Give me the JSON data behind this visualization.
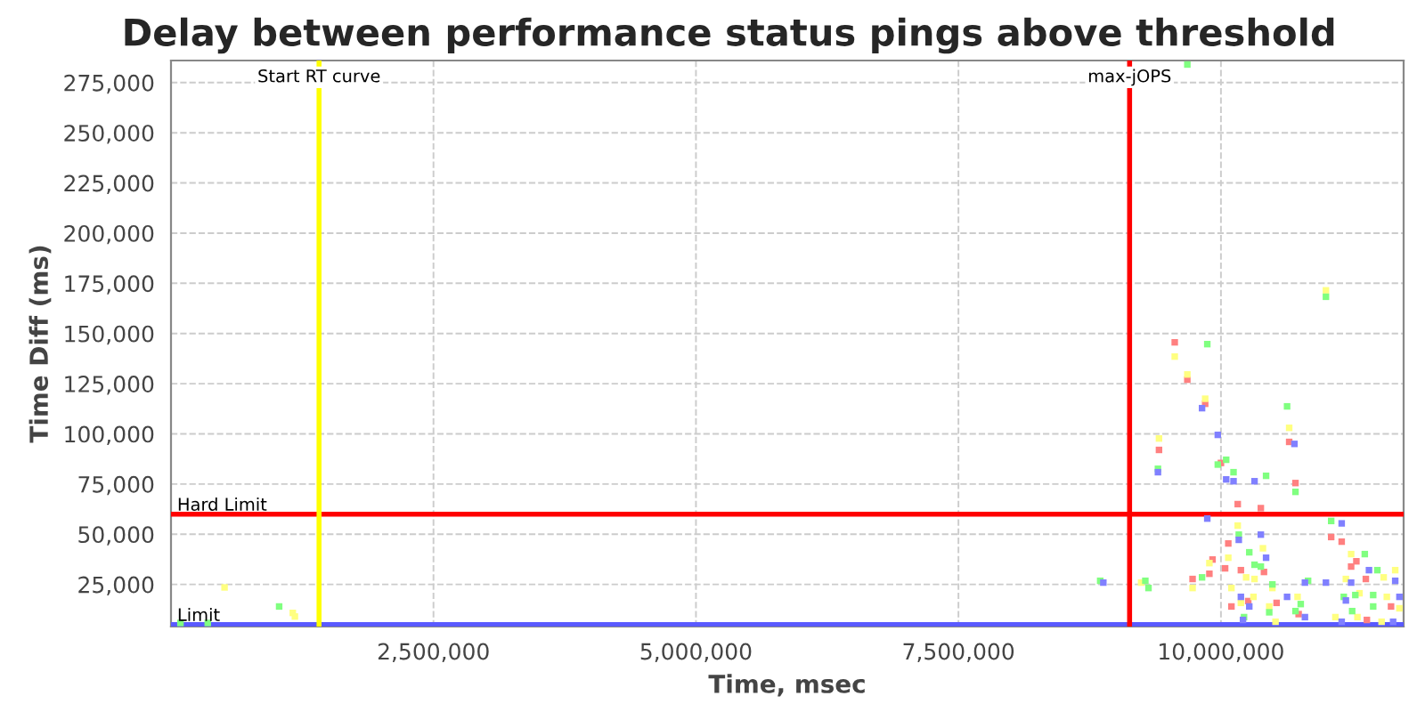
{
  "chart_data": {
    "type": "scatter",
    "title": "Delay between performance status pings above threshold",
    "xlabel": "Time, msec",
    "ylabel": "Time Diff (ms)",
    "xlim": [
      0,
      11740000
    ],
    "ylim": [
      4000,
      286000
    ],
    "xticks": [
      {
        "value": 2500000,
        "label": "2,500,000"
      },
      {
        "value": 5000000,
        "label": "5,000,000"
      },
      {
        "value": 7500000,
        "label": "7,500,000"
      },
      {
        "value": 10000000,
        "label": "10,000,000"
      }
    ],
    "yticks": [
      {
        "value": 25000,
        "label": "25,000"
      },
      {
        "value": 50000,
        "label": "50,000"
      },
      {
        "value": 75000,
        "label": "75,000"
      },
      {
        "value": 100000,
        "label": "100,000"
      },
      {
        "value": 125000,
        "label": "125,000"
      },
      {
        "value": 150000,
        "label": "150,000"
      },
      {
        "value": 175000,
        "label": "175,000"
      },
      {
        "value": 200000,
        "label": "200,000"
      },
      {
        "value": 225000,
        "label": "225,000"
      },
      {
        "value": 250000,
        "label": "250,000"
      },
      {
        "value": 275000,
        "label": "275,000"
      }
    ],
    "grid": true,
    "legend": false,
    "marker": "square",
    "ref_lines": [
      {
        "axis": "y",
        "value": 60000,
        "label": "Hard Limit",
        "color": "#ff0000"
      },
      {
        "axis": "y",
        "value": 5000,
        "label": "Limit",
        "color": "#5a5aff"
      },
      {
        "axis": "x",
        "value": 1410000,
        "label": "Start RT curve",
        "color": "#ffff00"
      },
      {
        "axis": "x",
        "value": 9130000,
        "label": "max-jOPS",
        "color": "#ff0000"
      }
    ],
    "series": [
      {
        "color": "#ff8080",
        "x": [
          9560000,
          9680000,
          9850000,
          9410000,
          10650000,
          10000000,
          10710000,
          10160000,
          10380000,
          11050000,
          11150000,
          10070000,
          9920000,
          11290000,
          11240000,
          10040000,
          10190000,
          10410000,
          9890000,
          9730000,
          11380000,
          10260000,
          10100000,
          10530000,
          11620000,
          11390000,
          10740000
        ],
        "values": [
          145600,
          127000,
          115000,
          92000,
          96000,
          85500,
          75500,
          65000,
          63000,
          48600,
          46300,
          45400,
          37400,
          36500,
          33900,
          33000,
          32100,
          31200,
          30300,
          27700,
          27700,
          16700,
          14000,
          15800,
          14000,
          7300,
          10200
        ]
      },
      {
        "color": "#ffff80",
        "x": [
          9560000,
          9680000,
          9850000,
          10650000,
          9410000,
          10160000,
          10400000,
          11240000,
          9890000,
          10070000,
          11660000,
          10240000,
          10320000,
          11550000,
          9240000,
          9730000,
          10100000,
          11190000,
          10490000,
          10730000,
          10310000,
          10190000,
          11320000,
          11580000,
          10460000,
          11300000,
          11090000,
          11530000,
          10520000,
          11700000,
          11000000,
          510000,
          1160000,
          1180000
        ],
        "values": [
          138500,
          129600,
          117500,
          103000,
          97700,
          54300,
          43000,
          40100,
          35600,
          38300,
          32100,
          28500,
          27700,
          28500,
          25900,
          23200,
          23200,
          27700,
          23200,
          18800,
          18800,
          15800,
          20600,
          18800,
          14000,
          8700,
          8700,
          6400,
          6400,
          13100,
          171500,
          23500,
          10800,
          9000
        ]
      },
      {
        "color": "#80ff80",
        "x": [
          9870000,
          10630000,
          9400000,
          10050000,
          9970000,
          10120000,
          10430000,
          10710000,
          11050000,
          10170000,
          11370000,
          10270000,
          10320000,
          10380000,
          11490000,
          9820000,
          8850000,
          9280000,
          9310000,
          10490000,
          10830000,
          10760000,
          11170000,
          11280000,
          11450000,
          10460000,
          10710000,
          11250000,
          11450000,
          10220000,
          11000000,
          9680000,
          1030000,
          90000,
          350000
        ],
        "values": [
          144700,
          113700,
          82600,
          87100,
          84700,
          80900,
          79100,
          71100,
          56600,
          49800,
          40100,
          41000,
          34800,
          33900,
          32100,
          28500,
          26800,
          26800,
          23200,
          25000,
          26800,
          15200,
          18800,
          19700,
          19700,
          11100,
          11700,
          11700,
          14000,
          8700,
          168300,
          284000,
          14000,
          5800,
          5800
        ]
      },
      {
        "color": "#8080ff",
        "x": [
          9820000,
          10700000,
          9970000,
          9400000,
          10050000,
          10120000,
          10320000,
          9870000,
          11150000,
          10380000,
          10170000,
          10430000,
          11410000,
          11660000,
          8880000,
          11000000,
          11240000,
          10800000,
          10630000,
          10190000,
          10270000,
          11190000,
          11700000,
          11150000,
          11640000,
          10210000,
          10800000
        ],
        "values": [
          112800,
          95000,
          99500,
          80900,
          77300,
          76400,
          76400,
          57800,
          55400,
          49800,
          47200,
          38300,
          32100,
          26800,
          25900,
          25900,
          25900,
          25900,
          18800,
          18800,
          14000,
          17000,
          18800,
          6400,
          6400,
          7300,
          8700
        ]
      }
    ]
  }
}
